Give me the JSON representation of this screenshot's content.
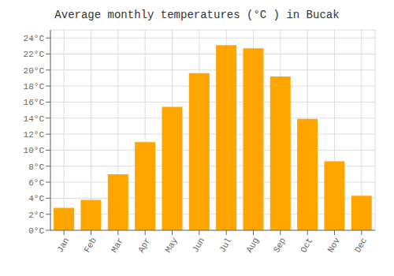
{
  "chart_data": {
    "type": "bar",
    "title": "Average monthly temperatures (°C ) in Bucak",
    "categories": [
      "Jan",
      "Feb",
      "Mar",
      "Apr",
      "May",
      "Jun",
      "Jul",
      "Aug",
      "Sep",
      "Oct",
      "Nov",
      "Dec"
    ],
    "values": [
      2.8,
      3.8,
      7.0,
      11.0,
      15.4,
      19.6,
      23.1,
      22.7,
      19.2,
      13.9,
      8.6,
      4.3
    ],
    "color": "#FFA500",
    "ylim": [
      0,
      25
    ],
    "yticks": [
      {
        "value": 0,
        "label": "0°C"
      },
      {
        "value": 2,
        "label": "2°C"
      },
      {
        "value": 4,
        "label": "4°C"
      },
      {
        "value": 6,
        "label": "6°C"
      },
      {
        "value": 8,
        "label": "8°C"
      },
      {
        "value": 10,
        "label": "10°C"
      },
      {
        "value": 12,
        "label": "12°C"
      },
      {
        "value": 14,
        "label": "14°C"
      },
      {
        "value": 16,
        "label": "16°C"
      },
      {
        "value": 18,
        "label": "18°C"
      },
      {
        "value": 20,
        "label": "20°C"
      },
      {
        "value": 22,
        "label": "22°C"
      },
      {
        "value": 24,
        "label": "24°C"
      }
    ],
    "grid": true
  }
}
